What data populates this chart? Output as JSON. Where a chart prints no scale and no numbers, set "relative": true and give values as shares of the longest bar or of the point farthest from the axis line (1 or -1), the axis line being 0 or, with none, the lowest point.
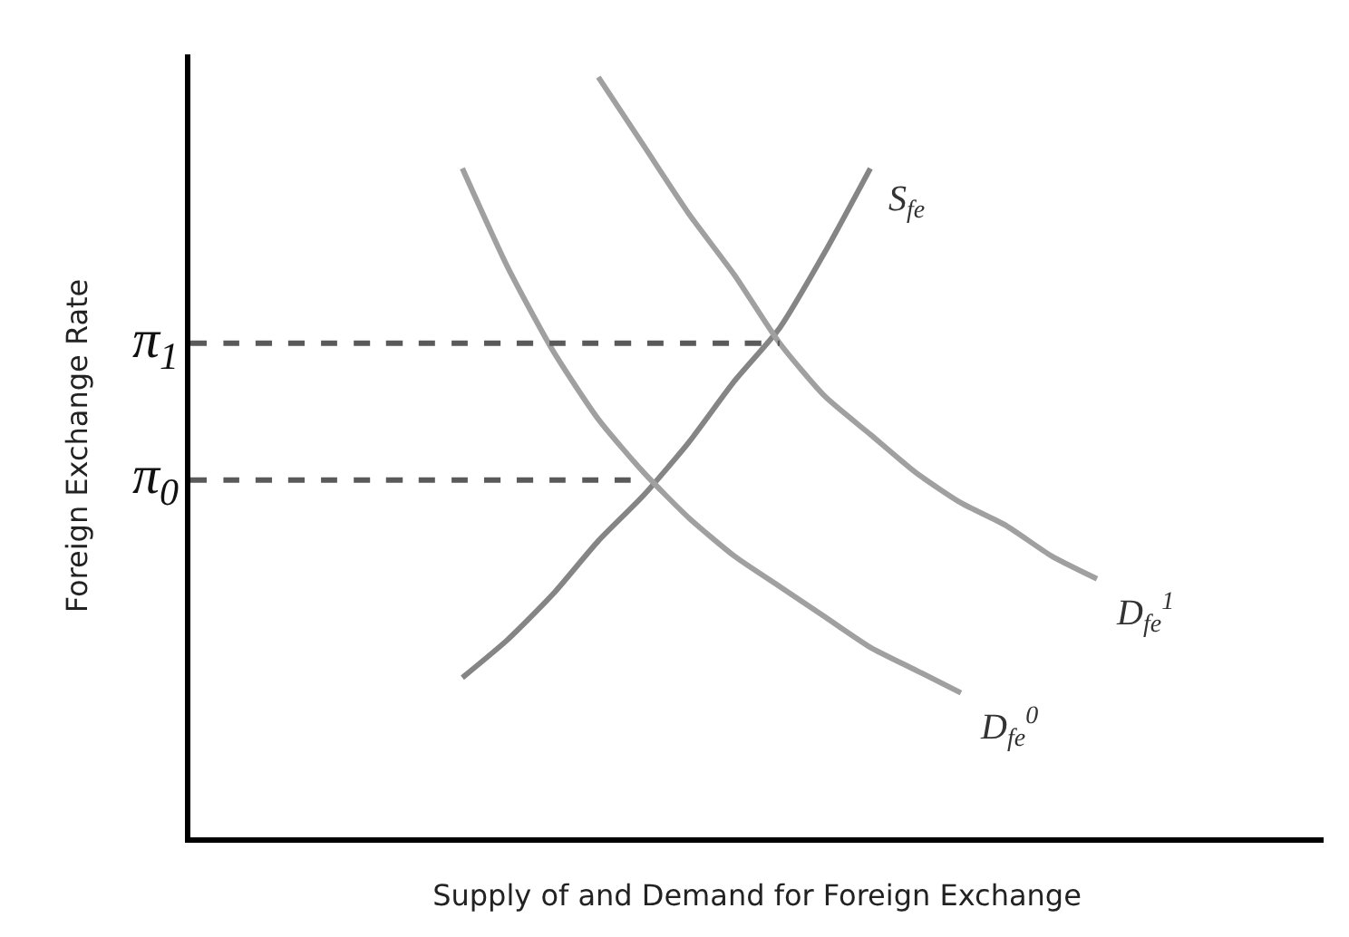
{
  "chart_data": {
    "type": "line",
    "relative": true,
    "legend": false,
    "xlabel": "Supply of and Demand for Foreign Exchange",
    "ylabel": "Foreign Exchange Rate",
    "categories": [
      null,
      null,
      null,
      null,
      null,
      null,
      null,
      null,
      null,
      null,
      null,
      null,
      null,
      null,
      null,
      null,
      null,
      null,
      null,
      null,
      null
    ],
    "series": [
      {
        "name": "S$_{fe}$",
        "color": "#858585",
        "values": [
          null,
          null,
          null,
          null,
          null,
          null,
          0.21,
          0.26,
          0.32,
          0.39,
          0.45,
          0.52,
          0.6,
          0.67,
          0.77,
          0.88,
          null,
          null,
          null,
          null,
          null
        ]
      },
      {
        "name": "D$_{fe}$$^{0}$",
        "color": "#a0a0a0",
        "values": [
          null,
          null,
          null,
          null,
          null,
          null,
          0.88,
          0.75,
          0.64,
          0.55,
          0.48,
          0.42,
          0.37,
          0.33,
          0.29,
          0.25,
          0.22,
          0.19,
          null,
          null,
          null
        ]
      },
      {
        "name": "D$_{fe}$$^{1}$",
        "color": "#a0a0a0",
        "values": [
          null,
          null,
          null,
          null,
          null,
          null,
          null,
          null,
          null,
          1.0,
          0.91,
          0.82,
          0.74,
          0.65,
          0.58,
          0.53,
          0.48,
          0.44,
          0.41,
          0.37,
          0.34
        ]
      },
      {
        "color": "#5a5a5a",
        "line_style": "dashed",
        "values": [
          0.65,
          0.65,
          0.65,
          0.65,
          0.65,
          0.65,
          0.65,
          0.65,
          0.65,
          0.65,
          0.65,
          0.65,
          0.65,
          0.65,
          null,
          null,
          null,
          null,
          null,
          null,
          null
        ]
      },
      {
        "color": "#5a5a5a",
        "line_style": "dashed",
        "values": [
          0.47,
          0.47,
          0.47,
          0.47,
          0.47,
          0.47,
          0.47,
          0.47,
          0.47,
          0.47,
          0.47,
          null,
          null,
          null,
          null,
          null,
          null,
          null,
          null,
          null,
          null
        ]
      }
    ],
    "annotations": [
      "π$_{1}$",
      "π$_{0}$"
    ]
  }
}
